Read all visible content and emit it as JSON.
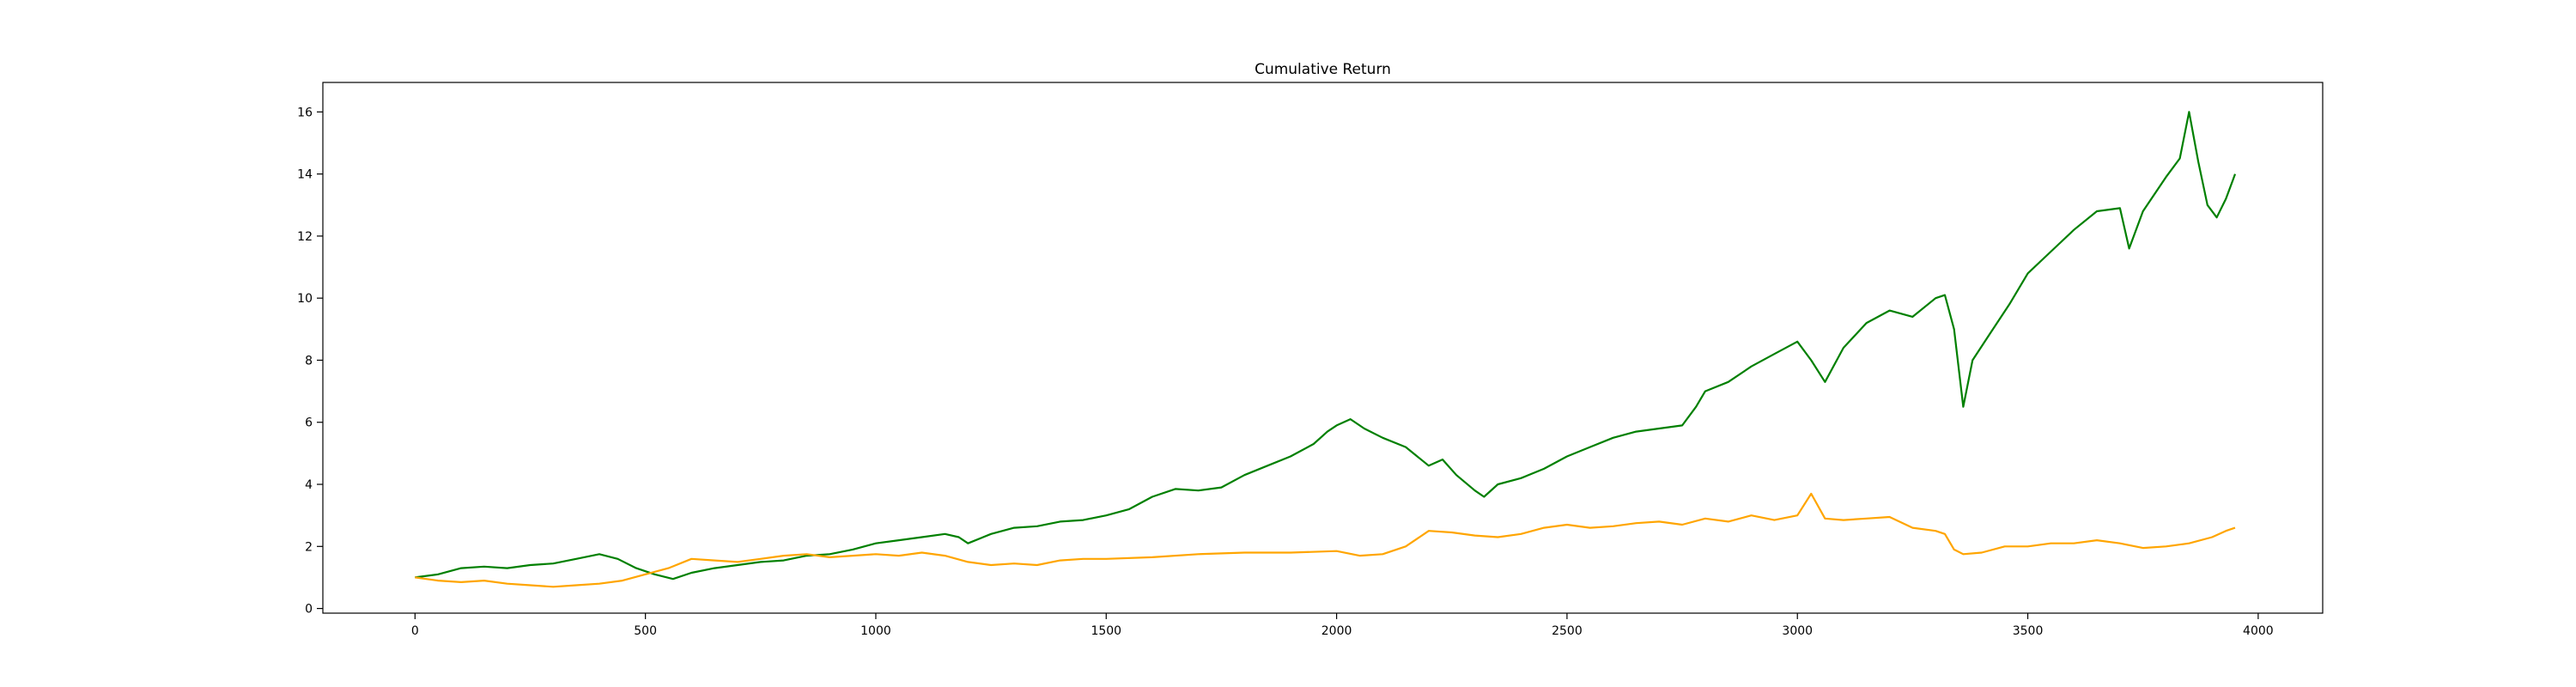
{
  "chart_data": {
    "type": "line",
    "title": "Cumulative Return",
    "xlabel": "",
    "ylabel": "",
    "xlim": [
      -200,
      4140
    ],
    "ylim": [
      -0.15,
      16.95
    ],
    "x_ticks": [
      0,
      500,
      1000,
      1500,
      2000,
      2500,
      3000,
      3500,
      4000
    ],
    "y_ticks": [
      0,
      2,
      4,
      6,
      8,
      10,
      12,
      14,
      16
    ],
    "x_tick_labels": [
      "0",
      "500",
      "1000",
      "1500",
      "2000",
      "2500",
      "3000",
      "3500",
      "4000"
    ],
    "y_tick_labels": [
      "0",
      "2",
      "4",
      "6",
      "8",
      "10",
      "12",
      "14",
      "16"
    ],
    "grid": false,
    "legend": "none",
    "series": [
      {
        "color": "#008000",
        "points": [
          [
            0,
            1.0
          ],
          [
            50,
            1.1
          ],
          [
            100,
            1.3
          ],
          [
            150,
            1.35
          ],
          [
            200,
            1.3
          ],
          [
            250,
            1.4
          ],
          [
            300,
            1.45
          ],
          [
            350,
            1.6
          ],
          [
            400,
            1.75
          ],
          [
            440,
            1.6
          ],
          [
            480,
            1.3
          ],
          [
            520,
            1.1
          ],
          [
            560,
            0.95
          ],
          [
            600,
            1.15
          ],
          [
            650,
            1.3
          ],
          [
            700,
            1.4
          ],
          [
            750,
            1.5
          ],
          [
            800,
            1.55
          ],
          [
            850,
            1.7
          ],
          [
            900,
            1.75
          ],
          [
            950,
            1.9
          ],
          [
            1000,
            2.1
          ],
          [
            1050,
            2.2
          ],
          [
            1100,
            2.3
          ],
          [
            1150,
            2.4
          ],
          [
            1180,
            2.3
          ],
          [
            1200,
            2.1
          ],
          [
            1250,
            2.4
          ],
          [
            1300,
            2.6
          ],
          [
            1350,
            2.65
          ],
          [
            1400,
            2.8
          ],
          [
            1450,
            2.85
          ],
          [
            1500,
            3.0
          ],
          [
            1550,
            3.2
          ],
          [
            1600,
            3.6
          ],
          [
            1650,
            3.85
          ],
          [
            1700,
            3.8
          ],
          [
            1750,
            3.9
          ],
          [
            1800,
            4.3
          ],
          [
            1850,
            4.6
          ],
          [
            1900,
            4.9
          ],
          [
            1950,
            5.3
          ],
          [
            1980,
            5.7
          ],
          [
            2000,
            5.9
          ],
          [
            2030,
            6.1
          ],
          [
            2060,
            5.8
          ],
          [
            2100,
            5.5
          ],
          [
            2150,
            5.2
          ],
          [
            2200,
            4.6
          ],
          [
            2230,
            4.8
          ],
          [
            2260,
            4.3
          ],
          [
            2300,
            3.8
          ],
          [
            2320,
            3.6
          ],
          [
            2350,
            4.0
          ],
          [
            2400,
            4.2
          ],
          [
            2450,
            4.5
          ],
          [
            2500,
            4.9
          ],
          [
            2550,
            5.2
          ],
          [
            2600,
            5.5
          ],
          [
            2650,
            5.7
          ],
          [
            2700,
            5.8
          ],
          [
            2750,
            5.9
          ],
          [
            2780,
            6.5
          ],
          [
            2800,
            7.0
          ],
          [
            2850,
            7.3
          ],
          [
            2900,
            7.8
          ],
          [
            2950,
            8.2
          ],
          [
            3000,
            8.6
          ],
          [
            3030,
            8.0
          ],
          [
            3060,
            7.3
          ],
          [
            3100,
            8.4
          ],
          [
            3150,
            9.2
          ],
          [
            3200,
            9.6
          ],
          [
            3250,
            9.4
          ],
          [
            3300,
            10.0
          ],
          [
            3320,
            10.1
          ],
          [
            3340,
            9.0
          ],
          [
            3360,
            6.5
          ],
          [
            3380,
            8.0
          ],
          [
            3420,
            8.9
          ],
          [
            3460,
            9.8
          ],
          [
            3500,
            10.8
          ],
          [
            3550,
            11.5
          ],
          [
            3600,
            12.2
          ],
          [
            3650,
            12.8
          ],
          [
            3700,
            12.9
          ],
          [
            3720,
            11.6
          ],
          [
            3750,
            12.8
          ],
          [
            3800,
            13.9
          ],
          [
            3830,
            14.5
          ],
          [
            3850,
            16.0
          ],
          [
            3870,
            14.4
          ],
          [
            3890,
            13.0
          ],
          [
            3910,
            12.6
          ],
          [
            3930,
            13.2
          ],
          [
            3945,
            13.8
          ],
          [
            3950,
            14.0
          ]
        ]
      },
      {
        "color": "#FFA500",
        "points": [
          [
            0,
            1.0
          ],
          [
            50,
            0.9
          ],
          [
            100,
            0.85
          ],
          [
            150,
            0.9
          ],
          [
            200,
            0.8
          ],
          [
            250,
            0.75
          ],
          [
            300,
            0.7
          ],
          [
            350,
            0.75
          ],
          [
            400,
            0.8
          ],
          [
            450,
            0.9
          ],
          [
            500,
            1.1
          ],
          [
            550,
            1.3
          ],
          [
            600,
            1.6
          ],
          [
            650,
            1.55
          ],
          [
            700,
            1.5
          ],
          [
            750,
            1.6
          ],
          [
            800,
            1.7
          ],
          [
            850,
            1.75
          ],
          [
            900,
            1.65
          ],
          [
            950,
            1.7
          ],
          [
            1000,
            1.75
          ],
          [
            1050,
            1.7
          ],
          [
            1100,
            1.8
          ],
          [
            1150,
            1.7
          ],
          [
            1200,
            1.5
          ],
          [
            1250,
            1.4
          ],
          [
            1300,
            1.45
          ],
          [
            1350,
            1.4
          ],
          [
            1400,
            1.55
          ],
          [
            1450,
            1.6
          ],
          [
            1500,
            1.6
          ],
          [
            1600,
            1.65
          ],
          [
            1700,
            1.75
          ],
          [
            1800,
            1.8
          ],
          [
            1900,
            1.8
          ],
          [
            2000,
            1.85
          ],
          [
            2050,
            1.7
          ],
          [
            2100,
            1.75
          ],
          [
            2150,
            2.0
          ],
          [
            2200,
            2.5
          ],
          [
            2250,
            2.45
          ],
          [
            2300,
            2.35
          ],
          [
            2350,
            2.3
          ],
          [
            2400,
            2.4
          ],
          [
            2450,
            2.6
          ],
          [
            2500,
            2.7
          ],
          [
            2550,
            2.6
          ],
          [
            2600,
            2.65
          ],
          [
            2650,
            2.75
          ],
          [
            2700,
            2.8
          ],
          [
            2750,
            2.7
          ],
          [
            2800,
            2.9
          ],
          [
            2850,
            2.8
          ],
          [
            2900,
            3.0
          ],
          [
            2950,
            2.85
          ],
          [
            3000,
            3.0
          ],
          [
            3030,
            3.7
          ],
          [
            3060,
            2.9
          ],
          [
            3100,
            2.85
          ],
          [
            3150,
            2.9
          ],
          [
            3200,
            2.95
          ],
          [
            3250,
            2.6
          ],
          [
            3300,
            2.5
          ],
          [
            3320,
            2.4
          ],
          [
            3340,
            1.9
          ],
          [
            3360,
            1.75
          ],
          [
            3400,
            1.8
          ],
          [
            3450,
            2.0
          ],
          [
            3500,
            2.0
          ],
          [
            3550,
            2.1
          ],
          [
            3600,
            2.1
          ],
          [
            3650,
            2.2
          ],
          [
            3700,
            2.1
          ],
          [
            3750,
            1.95
          ],
          [
            3800,
            2.0
          ],
          [
            3850,
            2.1
          ],
          [
            3900,
            2.3
          ],
          [
            3930,
            2.5
          ],
          [
            3950,
            2.6
          ]
        ]
      }
    ]
  }
}
